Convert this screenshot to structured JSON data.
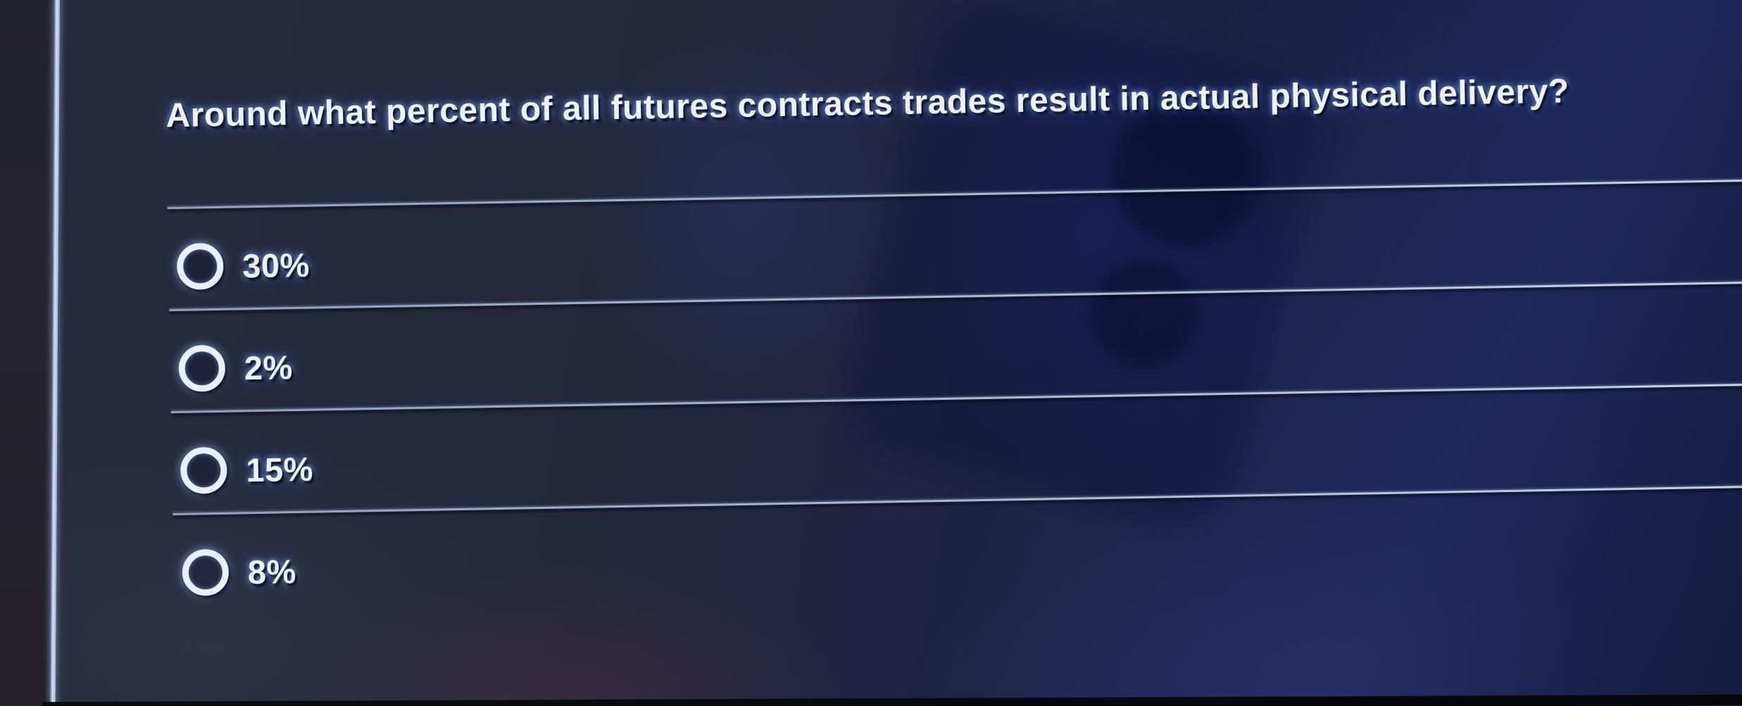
{
  "quiz": {
    "question_text": "Around what percent of all futures contracts trades result in actual physical delivery?",
    "options": [
      {
        "label": "30%",
        "selected": false
      },
      {
        "label": "2%",
        "selected": false
      },
      {
        "label": "15%",
        "selected": false
      },
      {
        "label": "8%",
        "selected": false
      }
    ]
  },
  "colors": {
    "screen_background": "#1e2244",
    "question_text": "#ecf3fd",
    "divider": "#b9c6dd",
    "radio_ring": "#e9f0fb",
    "bezel_highlight": "#d9e2f4"
  }
}
